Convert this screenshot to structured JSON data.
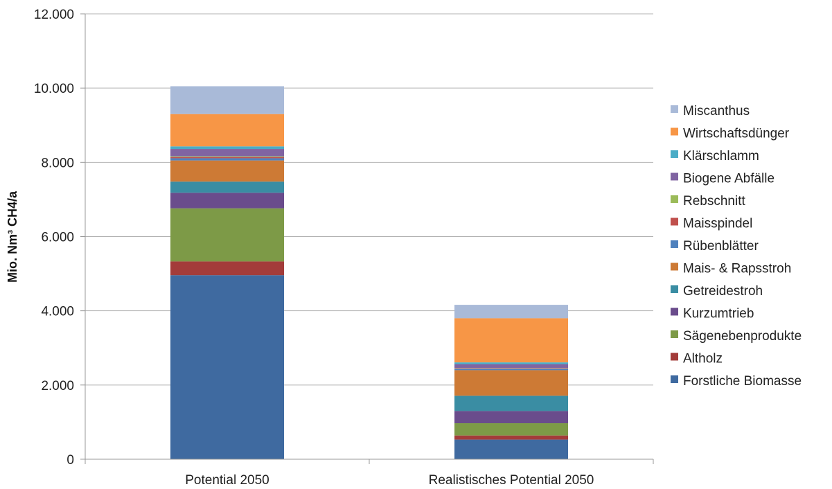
{
  "chart_data": {
    "type": "bar",
    "stacked": true,
    "ylabel": "Mio. Nm³ CH4/a",
    "xlabel": "",
    "ylim": [
      0,
      12000
    ],
    "yticks": [
      0,
      2000,
      4000,
      6000,
      8000,
      10000,
      12000
    ],
    "ytick_labels": [
      "0",
      "2.000",
      "4.000",
      "6.000",
      "8.000",
      "10.000",
      "12.000"
    ],
    "grid": true,
    "legend_position": "right",
    "categories": [
      "Potential 2050",
      "Realistisches Potential 2050"
    ],
    "series": [
      {
        "name": "Forstliche Biomasse",
        "color": "#3f6aa0",
        "values": [
          4960,
          530
        ]
      },
      {
        "name": "Altholz",
        "color": "#a33c3a",
        "values": [
          370,
          110
        ]
      },
      {
        "name": "Sägenebenprodukte",
        "color": "#7d9a47",
        "values": [
          1430,
          330
        ]
      },
      {
        "name": "Kurzumtrieb",
        "color": "#6a4c8c",
        "values": [
          420,
          330
        ]
      },
      {
        "name": "Getreidestroh",
        "color": "#3a8da3",
        "values": [
          300,
          410
        ]
      },
      {
        "name": "Mais- & Rapsstroh",
        "color": "#cd7a35",
        "values": [
          570,
          690
        ]
      },
      {
        "name": "Rübenblätter",
        "color": "#4f81bd",
        "values": [
          60,
          30
        ]
      },
      {
        "name": "Maisspindel",
        "color": "#c0504d",
        "values": [
          30,
          10
        ]
      },
      {
        "name": "Rebschnitt",
        "color": "#9bbb59",
        "values": [
          20,
          10
        ]
      },
      {
        "name": "Biogene Abfälle",
        "color": "#8064a2",
        "values": [
          200,
          110
        ]
      },
      {
        "name": "Klärschlamm",
        "color": "#4bacc6",
        "values": [
          70,
          50
        ]
      },
      {
        "name": "Wirtschaftsdünger",
        "color": "#f79646",
        "values": [
          870,
          1190
        ]
      },
      {
        "name": "Miscanthus",
        "color": "#a9bad8",
        "values": [
          750,
          360
        ]
      }
    ]
  }
}
